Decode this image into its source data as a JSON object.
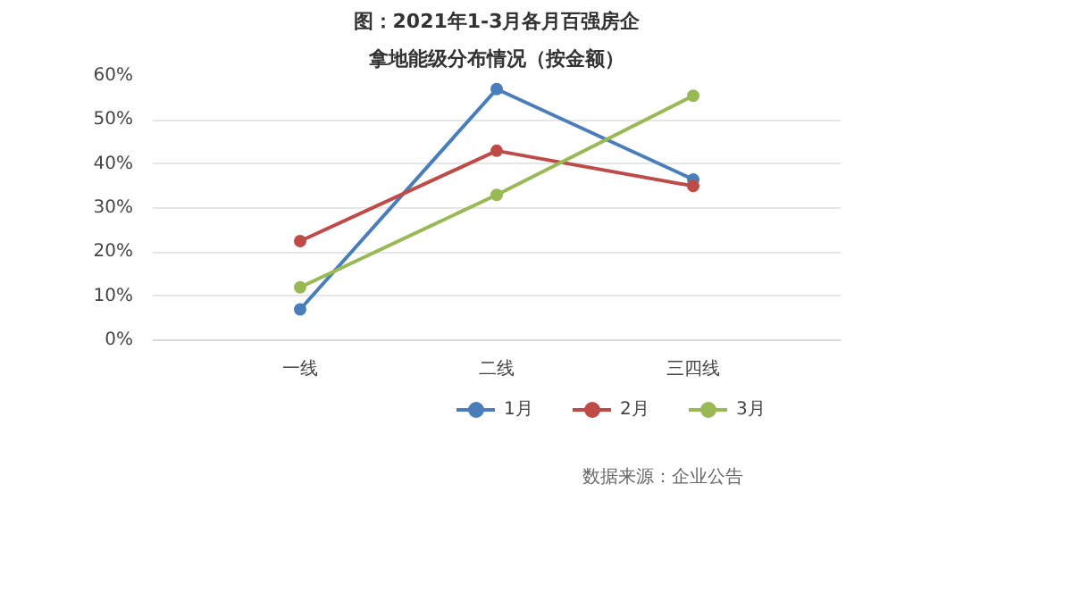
{
  "chart_data": {
    "type": "line",
    "title": "图：2021年1-3月各月百强房企",
    "subtitle": "拿地能级分布情况（按金额）",
    "categories": [
      "一线",
      "二线",
      "三四线"
    ],
    "series": [
      {
        "name": "1月",
        "color": "#4a7ebb",
        "values": [
          7,
          57,
          36.5
        ]
      },
      {
        "name": "2月",
        "color": "#be4b48",
        "values": [
          22.5,
          43,
          35
        ]
      },
      {
        "name": "3月",
        "color": "#98b954",
        "values": [
          12,
          33,
          55.5
        ]
      }
    ],
    "ylim": [
      0,
      60
    ],
    "yticks": [
      {
        "value": 0,
        "label": "0%"
      },
      {
        "value": 10,
        "label": "10%"
      },
      {
        "value": 20,
        "label": "20%"
      },
      {
        "value": 30,
        "label": "30%"
      },
      {
        "value": 40,
        "label": "40%"
      },
      {
        "value": 50,
        "label": "50%"
      },
      {
        "value": 60,
        "label": "60%"
      }
    ],
    "grid": "y",
    "legend": "bottom",
    "marker": "circle",
    "line_style": "solid",
    "annotations": [
      "数据来源：企业公告"
    ]
  }
}
